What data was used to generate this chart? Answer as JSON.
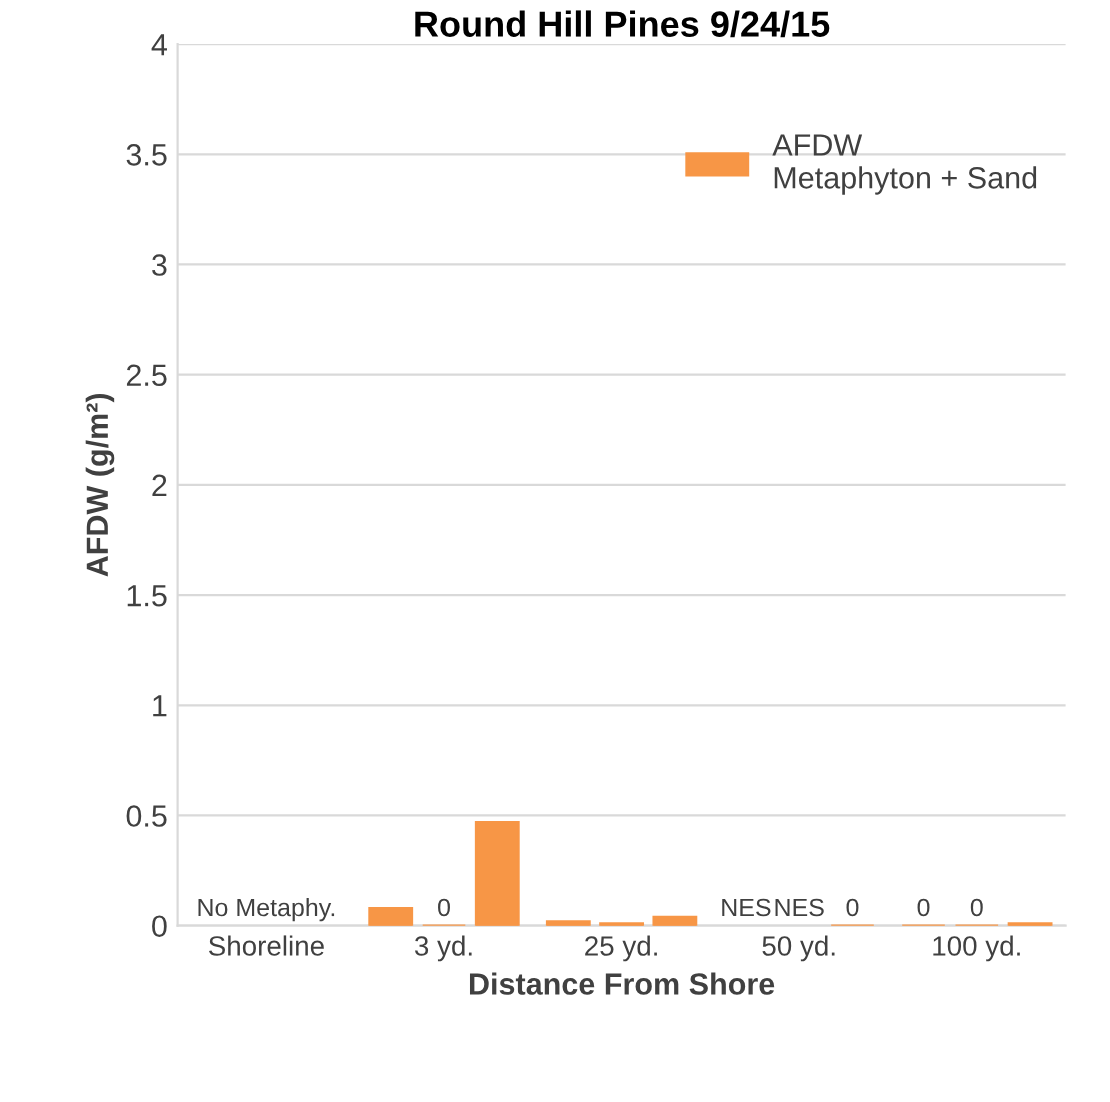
{
  "chart_data": {
    "type": "bar",
    "title": "Round Hill Pines 9/24/15",
    "xlabel": "Distance From Shore",
    "ylabel": "AFDW (g/m²)",
    "categories": [
      "Shoreline",
      "3 yd.",
      "25 yd.",
      "50 yd.",
      "100 yd."
    ],
    "series": [
      {
        "name": "AFDW\nMetaphyton + Sand",
        "color": "#f79646",
        "values": [
          null,
          0.08,
          0.02,
          null,
          0
        ],
        "value_labels": [
          null,
          null,
          null,
          "NES",
          "0"
        ]
      },
      {
        "color": "#f79646",
        "values": [
          null,
          0,
          0.01,
          null,
          0
        ],
        "value_labels": [
          "No Metaphy.",
          "0",
          null,
          "NES",
          "0"
        ]
      },
      {
        "color": "#f79646",
        "values": [
          null,
          0.47,
          0.04,
          0,
          0.01
        ],
        "value_labels": [
          null,
          null,
          null,
          "0",
          null
        ]
      }
    ],
    "ylim": [
      0,
      4
    ],
    "yticks": [
      0,
      0.5,
      1,
      1.5,
      2,
      2.5,
      3,
      3.5,
      4
    ],
    "grid": "y",
    "legend": "top right"
  }
}
